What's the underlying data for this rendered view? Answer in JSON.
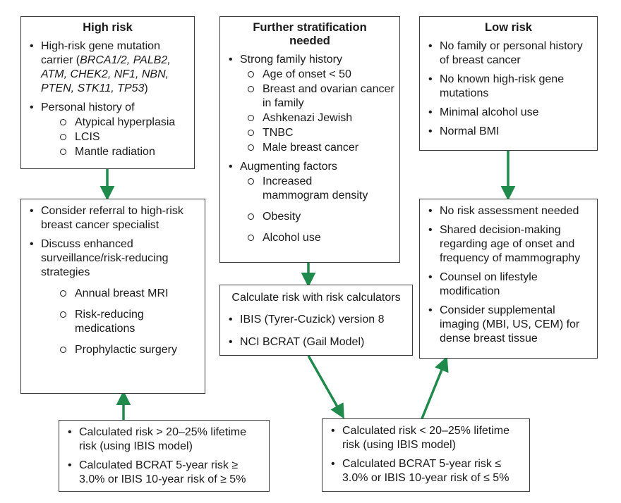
{
  "high_risk": {
    "title": "High risk",
    "item1_pre": "High-risk gene mutation carrier (",
    "genes": "BRCA1/2, PALB2, ATM, CHEK2, NF1, NBN, PTEN, STK11, TP53",
    "item1_post": ")",
    "item2": "Personal history of",
    "sub": [
      "Atypical hyperplasia",
      "LCIS",
      "Mantle radiation"
    ]
  },
  "further": {
    "title": "Further stratification needed",
    "item1": "Strong family history",
    "sub1": [
      "Age of onset < 50",
      "Breast and ovarian cancer in family",
      "Ashkenazi Jewish",
      "TNBC",
      "Male breast cancer"
    ],
    "item2": "Augmenting factors",
    "sub2": [
      "Increased mammogram density",
      "Obesity",
      "Alcohol use"
    ]
  },
  "low_risk": {
    "title": "Low risk",
    "items": [
      "No family or personal history of breast cancer",
      "No known high-risk gene mutations",
      "Minimal alcohol use",
      "Normal BMI"
    ]
  },
  "high_actions": {
    "item1": "Consider referral to high-risk breast cancer specialist",
    "item2": "Discuss enhanced surveillance/risk-reducing strategies",
    "sub": [
      "Annual breast MRI",
      "Risk-reducing medications",
      "Prophylactic surgery"
    ]
  },
  "calculators": {
    "title": "Calculate risk with risk calculators",
    "items": [
      "IBIS (Tyrer-Cuzick) version 8",
      "NCI BCRAT (Gail Model)"
    ]
  },
  "low_actions": {
    "items": [
      "No risk assessment needed",
      "Shared decision-making regarding age of onset and frequency of mammography",
      "Counsel on lifestyle modification",
      "Consider supplemental imaging (MBI, US, CEM) for dense breast tissue"
    ]
  },
  "calc_high": {
    "items": [
      "Calculated risk > 20–25% lifetime risk (using IBIS model)",
      "Calculated BCRAT 5-year risk ≥ 3.0% or IBIS 10-year risk of ≥ 5%"
    ]
  },
  "calc_low": {
    "items": [
      "Calculated risk < 20–25% lifetime risk (using IBIS model)",
      "Calculated BCRAT 5-year risk ≤ 3.0% or IBIS 10-year risk of ≤ 5%"
    ]
  },
  "colors": {
    "arrow": "#1f8a4c",
    "border": "#3a3a3a"
  }
}
